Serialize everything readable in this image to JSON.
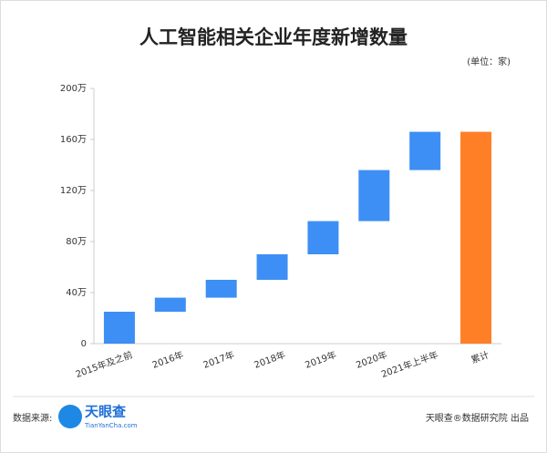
{
  "chart_data": {
    "type": "waterfall",
    "title": "人工智能相关企业年度新增数量",
    "unit": "(单位：家)",
    "categories": [
      "2015年及之前",
      "2016年",
      "2017年",
      "2018年",
      "2019年",
      "2020年",
      "2021年上半年",
      "累计"
    ],
    "values": [
      25,
      11,
      14,
      20,
      26,
      40,
      30,
      166
    ],
    "measure": [
      "relative",
      "relative",
      "relative",
      "relative",
      "relative",
      "relative",
      "relative",
      "total"
    ],
    "colors": [
      "#3d8ff5",
      "#3d8ff5",
      "#3d8ff5",
      "#3d8ff5",
      "#3d8ff5",
      "#3d8ff5",
      "#3d8ff5",
      "#ff7f27"
    ],
    "ylim": [
      0,
      200
    ],
    "yticks": [
      0,
      {
        "value": 40,
        "label": "40万"
      },
      {
        "value": 80,
        "label": "80万"
      },
      {
        "value": 120,
        "label": "120万"
      },
      {
        "value": 160,
        "label": "160万"
      },
      {
        "value": 200,
        "label": "200万"
      }
    ],
    "grid": false,
    "source_label": "数据来源:",
    "source_logo": "天眼查",
    "source_url": "TianYanCha.com",
    "credit": "天眼查®数据研究院 出品"
  }
}
